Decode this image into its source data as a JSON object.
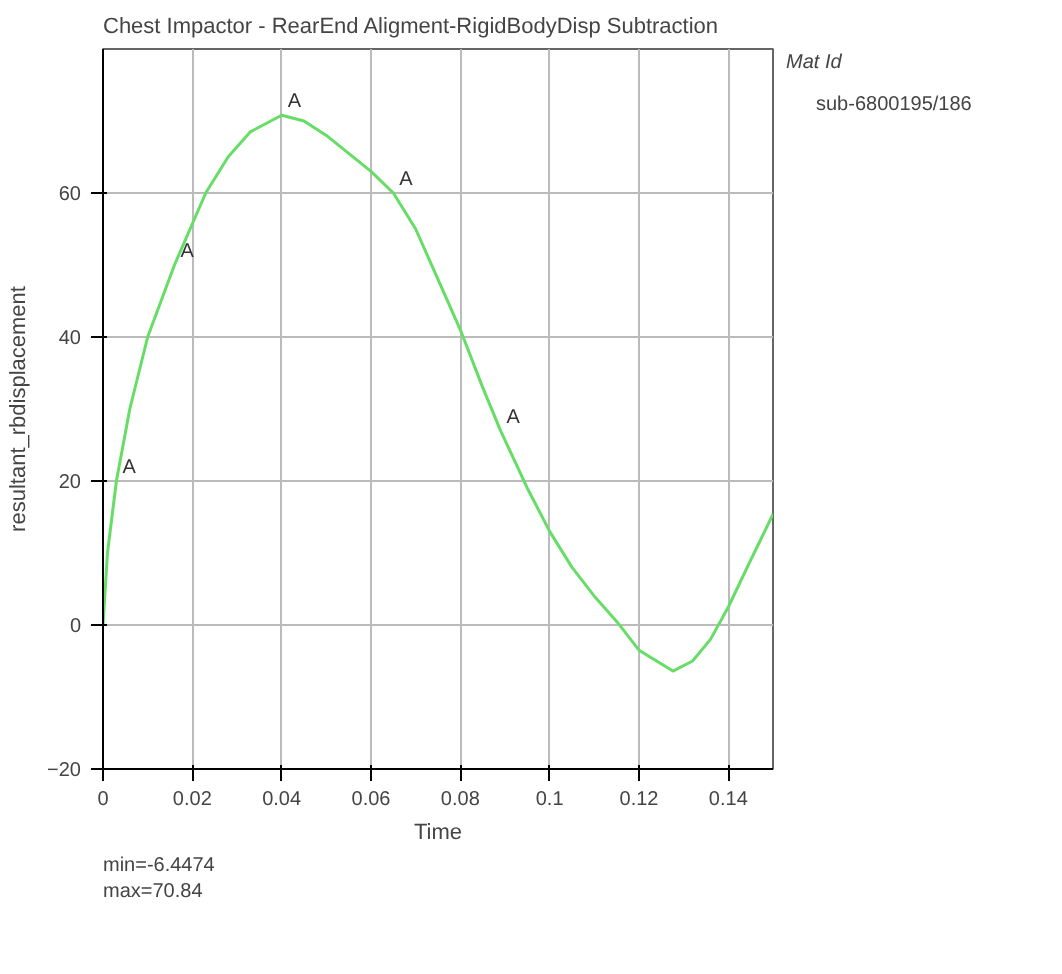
{
  "chart_data": {
    "type": "line",
    "title": "Chest Impactor - RearEnd Aligment-RigidBodyDisp Subtraction",
    "xlabel": "Time",
    "ylabel": "resultant_rbdisplacement",
    "legend_title": "Mat Id",
    "x": [
      0,
      0.001,
      0.003,
      0.006,
      0.01,
      0.016,
      0.023,
      0.028,
      0.033,
      0.04,
      0.045,
      0.05,
      0.055,
      0.06,
      0.065,
      0.07,
      0.075,
      0.08,
      0.085,
      0.089,
      0.095,
      0.1,
      0.105,
      0.11,
      0.115,
      0.12,
      0.1276,
      0.132,
      0.136,
      0.14,
      0.145,
      0.15
    ],
    "series": [
      {
        "name": "sub-6800195/186",
        "color": "#66dd66",
        "values": [
          0,
          10,
          20,
          30,
          40,
          50,
          60,
          65,
          68.5,
          70.8,
          70,
          68,
          65.5,
          63,
          60,
          55,
          48,
          41,
          33,
          27,
          19,
          13,
          8,
          4,
          0.5,
          -3.5,
          -6.4,
          -5,
          -2,
          2.5,
          9,
          15.4
        ]
      }
    ],
    "xlim": [
      0,
      0.15
    ],
    "ylim": [
      -20,
      80
    ],
    "xticks": [
      0,
      0.02,
      0.04,
      0.06,
      0.08,
      0.1,
      0.12,
      0.14
    ],
    "yticks": [
      -20,
      0,
      20,
      40,
      60
    ],
    "grid": true,
    "legend": "right",
    "line_style": "solid",
    "annotations": [
      {
        "text": "A",
        "x": 0.003,
        "y": 20
      },
      {
        "text": "A",
        "x": 0.016,
        "y": 50
      },
      {
        "text": "A",
        "x": 0.04,
        "y": 70.8
      },
      {
        "text": "A",
        "x": 0.065,
        "y": 60
      },
      {
        "text": "A",
        "x": 0.089,
        "y": 27
      },
      "min=-6.4474",
      "max=70.84"
    ]
  }
}
